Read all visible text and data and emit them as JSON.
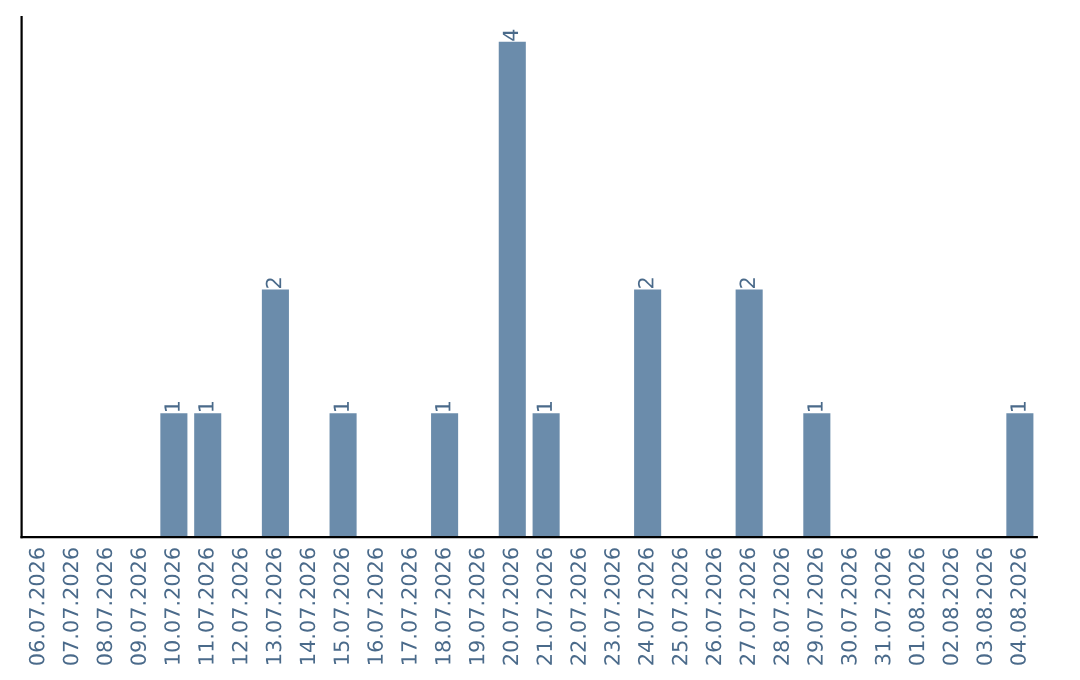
{
  "chart_data": {
    "type": "bar",
    "categories": [
      "06.07.2026",
      "07.07.2026",
      "08.07.2026",
      "09.07.2026",
      "10.07.2026",
      "11.07.2026",
      "12.07.2026",
      "13.07.2026",
      "14.07.2026",
      "15.07.2026",
      "16.07.2026",
      "17.07.2026",
      "18.07.2026",
      "19.07.2026",
      "20.07.2026",
      "21.07.2026",
      "22.07.2026",
      "23.07.2026",
      "24.07.2026",
      "25.07.2026",
      "26.07.2026",
      "27.07.2026",
      "28.07.2026",
      "29.07.2026",
      "30.07.2026",
      "31.07.2026",
      "01.08.2026",
      "02.08.2026",
      "03.08.2026",
      "04.08.2026"
    ],
    "values": [
      0,
      0,
      0,
      0,
      1,
      1,
      0,
      2,
      0,
      1,
      0,
      0,
      1,
      0,
      4,
      1,
      0,
      0,
      2,
      0,
      0,
      2,
      0,
      1,
      0,
      0,
      0,
      0,
      0,
      1
    ],
    "color": "#6b8cab",
    "value_labels": [
      null,
      null,
      null,
      null,
      "1",
      "1",
      null,
      "2",
      null,
      "1",
      null,
      null,
      "1",
      null,
      "4",
      "1",
      null,
      null,
      "2",
      null,
      null,
      "2",
      null,
      "1",
      null,
      null,
      null,
      null,
      null,
      "1"
    ],
    "tick_labels": "x",
    "grid": false,
    "legend": false
  }
}
